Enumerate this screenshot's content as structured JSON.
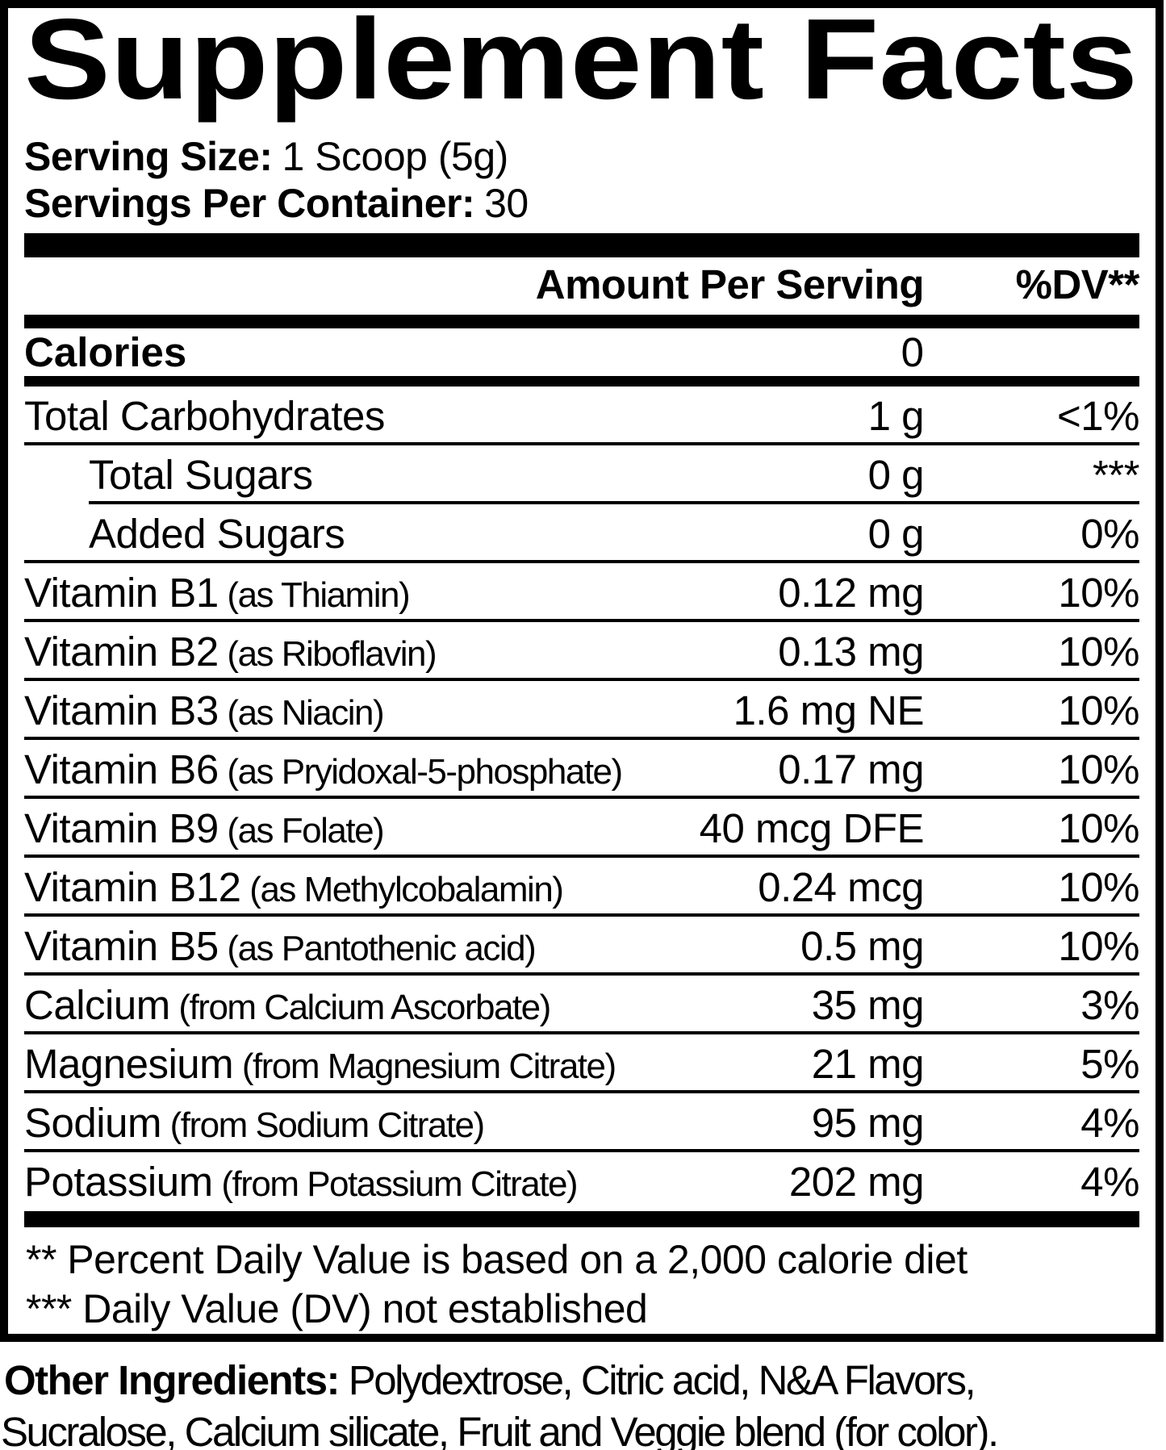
{
  "title": "Supplement Facts",
  "serving": {
    "size_label": "Serving Size:",
    "size_value": "1 Scoop (5g)",
    "per_container_label": "Servings Per Container:",
    "per_container_value": "30"
  },
  "table": {
    "amount_header": "Amount Per Serving",
    "dv_header": "%DV**",
    "calories": {
      "label": "Calories",
      "amount": "0",
      "dv": ""
    },
    "rows": [
      {
        "label": "Total Carbohydrates",
        "sublabel": "",
        "amount": "1 g",
        "dv": "<1%",
        "indent": false,
        "sep_indent": false
      },
      {
        "label": "Total Sugars",
        "sublabel": "",
        "amount": "0 g",
        "dv": "***",
        "indent": true,
        "sep_indent": true
      },
      {
        "label": "Added Sugars",
        "sublabel": "",
        "amount": "0 g",
        "dv": "0%",
        "indent": true,
        "sep_indent": false
      },
      {
        "label": "Vitamin B1",
        "sublabel": "(as Thiamin)",
        "amount": "0.12 mg",
        "dv": "10%",
        "indent": false,
        "sep_indent": false
      },
      {
        "label": "Vitamin B2",
        "sublabel": "(as Riboflavin)",
        "amount": "0.13 mg",
        "dv": "10%",
        "indent": false,
        "sep_indent": false
      },
      {
        "label": "Vitamin B3",
        "sublabel": "(as Niacin)",
        "amount": "1.6 mg NE",
        "dv": "10%",
        "indent": false,
        "sep_indent": false
      },
      {
        "label": "Vitamin B6",
        "sublabel": "(as Pryidoxal-5-phosphate)",
        "amount": "0.17 mg",
        "dv": "10%",
        "indent": false,
        "sep_indent": false
      },
      {
        "label": "Vitamin B9",
        "sublabel": "(as Folate)",
        "amount": "40 mcg DFE",
        "dv": "10%",
        "indent": false,
        "sep_indent": false
      },
      {
        "label": "Vitamin B12",
        "sublabel": "(as Methylcobalamin)",
        "amount": "0.24 mcg",
        "dv": "10%",
        "indent": false,
        "sep_indent": false
      },
      {
        "label": "Vitamin B5",
        "sublabel": "(as Pantothenic acid)",
        "amount": "0.5 mg",
        "dv": "10%",
        "indent": false,
        "sep_indent": false
      },
      {
        "label": "Calcium",
        "sublabel": "(from Calcium Ascorbate)",
        "amount": "35 mg",
        "dv": "3%",
        "indent": false,
        "sep_indent": false
      },
      {
        "label": "Magnesium",
        "sublabel": "(from Magnesium Citrate)",
        "amount": "21 mg",
        "dv": "5%",
        "indent": false,
        "sep_indent": false
      },
      {
        "label": "Sodium",
        "sublabel": "(from Sodium Citrate)",
        "amount": "95 mg",
        "dv": "4%",
        "indent": false,
        "sep_indent": false
      },
      {
        "label": "Potassium",
        "sublabel": "(from Potassium Citrate)",
        "amount": "202 mg",
        "dv": "4%",
        "indent": false,
        "sep_indent": false
      }
    ]
  },
  "footnotes": [
    "** Percent Daily Value is based on a 2,000 calorie diet",
    "*** Daily Value (DV) not established"
  ],
  "other_ingredients": {
    "label": "Other Ingredients:",
    "line1": "Polydextrose, Citric acid, N&A Flavors,",
    "line2": "Sucralose, Calcium silicate, Fruit and Veggie blend (for color)."
  },
  "colors": {
    "text": "#000000",
    "background": "#ffffff"
  }
}
